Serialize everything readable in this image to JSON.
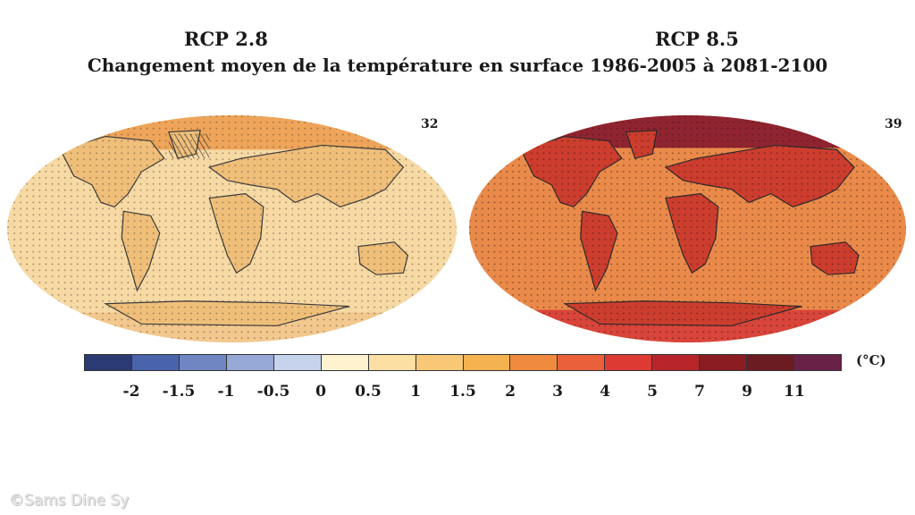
{
  "headers": {
    "left": "RCP 2.8",
    "right": "RCP 8.5",
    "subtitle": "Changement moyen de la température en surface 1986-2005 à 2081-2100"
  },
  "maps": [
    {
      "id": "left",
      "count_label": "32",
      "colors": {
        "ocean": "#f7d9a4",
        "land": "#efbf7a",
        "arctic": "#eea55a",
        "antarctic": "#f3c88e",
        "hatch": "#333333"
      }
    },
    {
      "id": "right",
      "count_label": "39",
      "colors": {
        "ocean": "#ea8a4a",
        "land": "#cc3d2e",
        "arctic": "#8f2430",
        "antarctic": "#d9453a",
        "hatch": "#333333"
      }
    }
  ],
  "colorbar": {
    "unit": "(°C)",
    "colors": [
      "#2b3a72",
      "#4a64ac",
      "#6f86c2",
      "#96a9d6",
      "#c7d2ec",
      "#fff3cf",
      "#fbdfa3",
      "#f8c877",
      "#f4b250",
      "#ef8a3f",
      "#e9603a",
      "#dc3a33",
      "#b8262b",
      "#8a1c22",
      "#6b1b22",
      "#6a2147"
    ],
    "ticks": [
      "-2",
      "-1.5",
      "-1",
      "-0.5",
      "0",
      "0.5",
      "1",
      "1.5",
      "2",
      "3",
      "4",
      "5",
      "7",
      "9",
      "11"
    ]
  },
  "watermark": "©Sams Dine Sy"
}
